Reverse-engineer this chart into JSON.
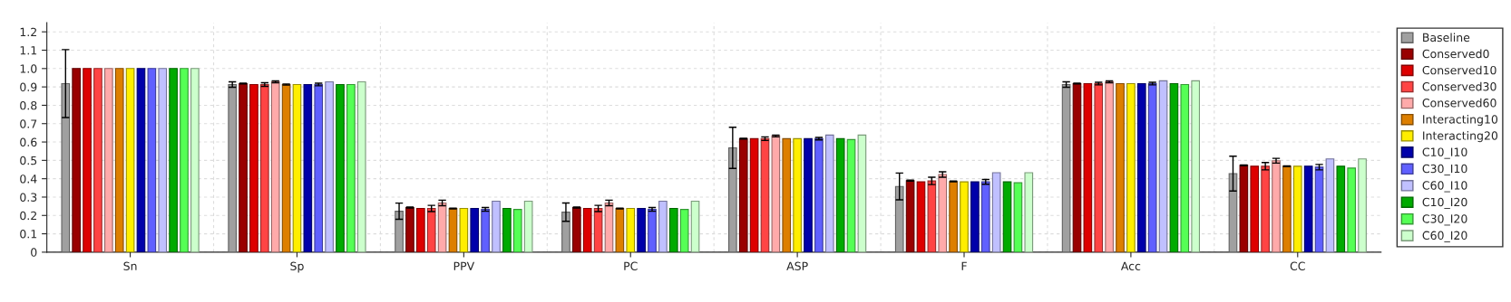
{
  "chart_data": {
    "type": "bar",
    "categories": [
      "Sn",
      "Sp",
      "PPV",
      "PC",
      "ASP",
      "F",
      "Acc",
      "CC"
    ],
    "ylim": [
      0,
      1.25
    ],
    "yticks": [
      {
        "value": 0,
        "label": "0"
      },
      {
        "value": 0.1,
        "label": "0.1"
      },
      {
        "value": 0.2,
        "label": "0.2"
      },
      {
        "value": 0.3,
        "label": "0.3"
      },
      {
        "value": 0.4,
        "label": "0.4"
      },
      {
        "value": 0.5,
        "label": "0.5"
      },
      {
        "value": 0.6,
        "label": "0.6"
      },
      {
        "value": 0.7,
        "label": "0.7"
      },
      {
        "value": 0.8,
        "label": "0.8"
      },
      {
        "value": 0.9,
        "label": "0.9"
      },
      {
        "value": 1.0,
        "label": "1.0"
      },
      {
        "value": 1.1,
        "label": "1.1"
      },
      {
        "value": 1.2,
        "label": "1.2"
      }
    ],
    "grid": true,
    "legend": "right",
    "series": [
      {
        "name": "Baseline",
        "color": "#a0a0a0",
        "values": [
          0.918,
          0.913,
          0.223,
          0.218,
          0.568,
          0.358,
          0.913,
          0.428
        ],
        "errors": [
          0.185,
          0.015,
          0.044,
          0.05,
          0.112,
          0.073,
          0.015,
          0.095
        ]
      },
      {
        "name": "Conserved0",
        "color": "#990000",
        "values": [
          1.0,
          0.918,
          0.243,
          0.243,
          0.618,
          0.39,
          0.918,
          0.473
        ],
        "errors": [
          null,
          0.002,
          0.003,
          0.003,
          0.002,
          0.003,
          0.002,
          0.002
        ]
      },
      {
        "name": "Conserved10",
        "color": "#dd0000",
        "values": [
          1.0,
          0.913,
          0.238,
          0.238,
          0.618,
          0.383,
          0.918,
          0.468
        ]
      },
      {
        "name": "Conserved30",
        "color": "#ff4444",
        "values": [
          1.0,
          0.913,
          0.238,
          0.238,
          0.618,
          0.388,
          0.918,
          0.468
        ],
        "errors": [
          null,
          0.01,
          0.017,
          0.017,
          0.01,
          0.02,
          0.007,
          0.02
        ]
      },
      {
        "name": "Conserved60",
        "color": "#ffaaaa",
        "values": [
          1.0,
          0.928,
          0.268,
          0.268,
          0.633,
          0.423,
          0.928,
          0.498
        ],
        "errors": [
          null,
          0.005,
          0.015,
          0.015,
          0.005,
          0.015,
          0.005,
          0.013
        ]
      },
      {
        "name": "Interacting10",
        "color": "#dd7f00",
        "values": [
          1.0,
          0.913,
          0.238,
          0.238,
          0.618,
          0.385,
          0.918,
          0.468
        ],
        "errors": [
          null,
          0.003,
          0.002,
          0.002,
          null,
          0.002,
          null,
          0.002
        ]
      },
      {
        "name": "Interacting20",
        "color": "#ffee00",
        "values": [
          1.0,
          0.913,
          0.238,
          0.238,
          0.618,
          0.383,
          0.918,
          0.468
        ]
      },
      {
        "name": "C10_I10",
        "color": "#0000aa",
        "values": [
          1.0,
          0.913,
          0.238,
          0.238,
          0.618,
          0.383,
          0.918,
          0.468
        ]
      },
      {
        "name": "C30_I10",
        "color": "#6060ff",
        "values": [
          1.0,
          0.913,
          0.233,
          0.233,
          0.618,
          0.383,
          0.918,
          0.463
        ],
        "errors": [
          null,
          0.007,
          0.01,
          0.01,
          0.007,
          0.013,
          0.007,
          0.015
        ]
      },
      {
        "name": "C60_I10",
        "color": "#c0c0ff",
        "values": [
          1.0,
          0.928,
          0.278,
          0.278,
          0.638,
          0.433,
          0.933,
          0.508
        ]
      },
      {
        "name": "C10_I20",
        "color": "#00aa00",
        "values": [
          1.0,
          0.913,
          0.238,
          0.238,
          0.618,
          0.383,
          0.918,
          0.468
        ]
      },
      {
        "name": "C30_I20",
        "color": "#55ff55",
        "values": [
          1.0,
          0.913,
          0.233,
          0.233,
          0.613,
          0.378,
          0.913,
          0.458
        ]
      },
      {
        "name": "C60_I20",
        "color": "#ccffcc",
        "values": [
          1.0,
          0.928,
          0.278,
          0.278,
          0.638,
          0.433,
          0.933,
          0.508
        ]
      }
    ]
  }
}
